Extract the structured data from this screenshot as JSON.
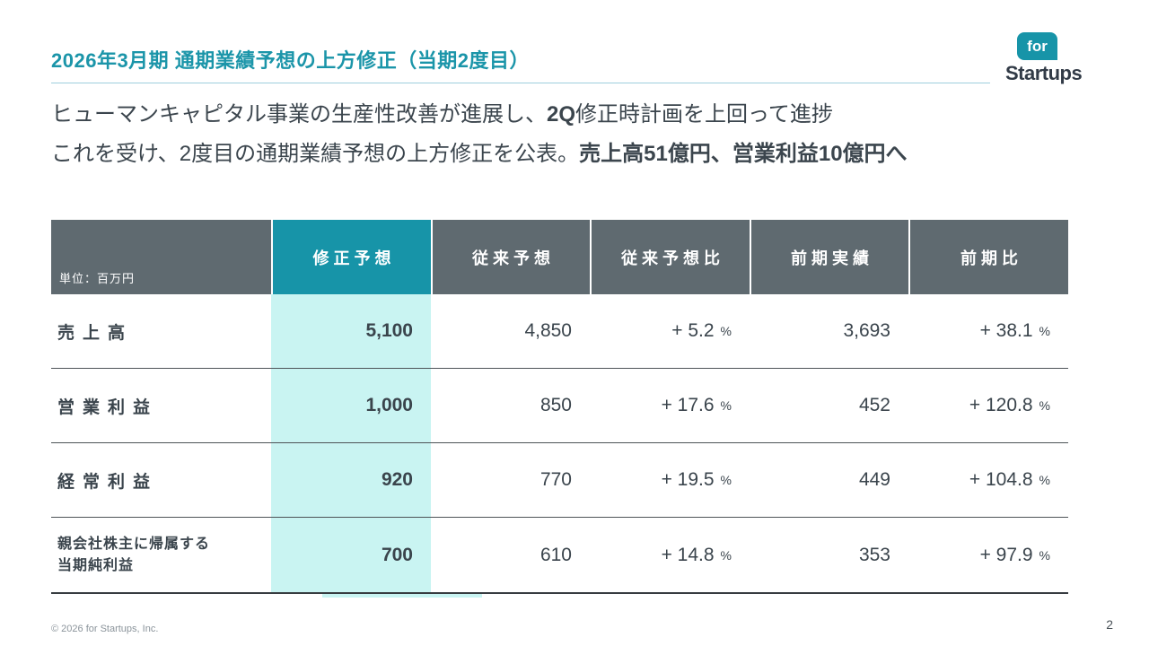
{
  "colors": {
    "accent_teal": "#1794a8",
    "title_teal": "#1b95a9",
    "header_gray": "#5f6a70",
    "highlight_cyan": "#c9f4f2",
    "body_text": "#3b454d"
  },
  "header": {
    "title": "2026年3月期 通期業績予想の上方修正（当期2度目）",
    "logo": {
      "mark_text": "for",
      "company_text": "Startups"
    }
  },
  "lead": {
    "line1": [
      {
        "text": "ヒューマンキャピタル事業の生産性改善が進展し、",
        "bold": false
      },
      {
        "text": "2Q",
        "bold": true
      },
      {
        "text": "修正時計画を上回って進捗",
        "bold": false
      }
    ],
    "line2": [
      {
        "text": "これを受け、2度目の通期業績予想の上方修正を公表。",
        "bold": false
      },
      {
        "text": "売上高51億円、営業利益10億円へ",
        "bold": true
      }
    ]
  },
  "table": {
    "unit_label": "単位：百万円",
    "columns": [
      "修正予想",
      "従来予想",
      "従来予想比",
      "前期実績",
      "前期比"
    ],
    "percent_sign": "%",
    "rows": [
      {
        "label": "売上高",
        "revised": "5,100",
        "conventional": "4,850",
        "vs_conventional": "+ 5.2",
        "prior_actual": "3,693",
        "vs_prior": "+ 38.1"
      },
      {
        "label": "営業利益",
        "revised": "1,000",
        "conventional": "850",
        "vs_conventional": "+ 17.6",
        "prior_actual": "452",
        "vs_prior": "+ 120.8"
      },
      {
        "label": "経常利益",
        "revised": "920",
        "conventional": "770",
        "vs_conventional": "+ 19.5",
        "prior_actual": "449",
        "vs_prior": "+ 104.8"
      },
      {
        "label_line1": "親会社株主に帰属する",
        "label_line2": "当期純利益",
        "revised": "700",
        "conventional": "610",
        "vs_conventional": "+ 14.8",
        "prior_actual": "353",
        "vs_prior": "+ 97.9"
      }
    ]
  },
  "footer": {
    "copyright": "© 2026 for Startups, Inc.",
    "page_number": "2"
  }
}
